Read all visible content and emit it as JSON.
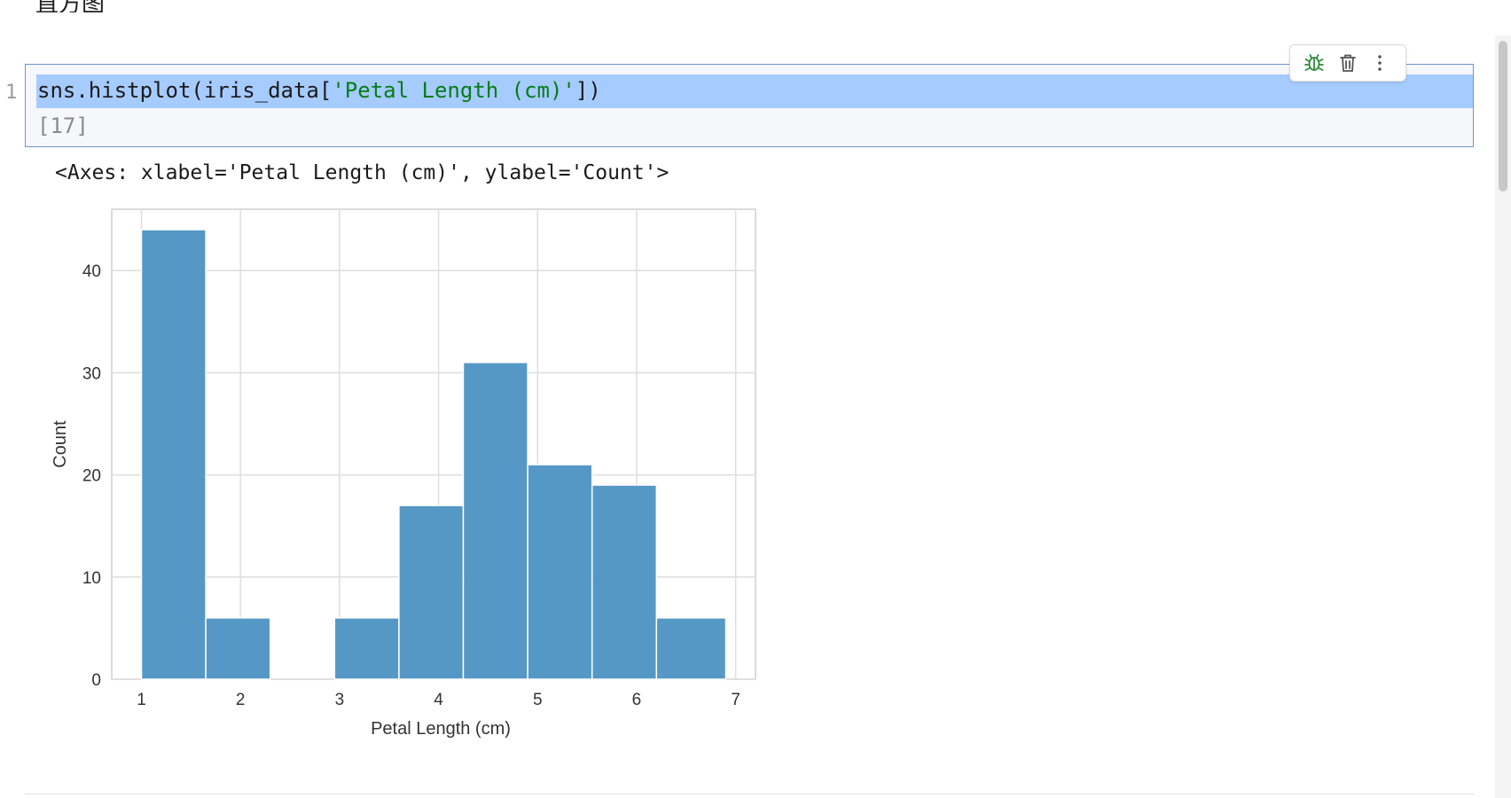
{
  "heading": {
    "text": "直方图"
  },
  "cell": {
    "line_number": "1",
    "code_pre": "sns.histplot(iris_data[",
    "code_str": "'Petal Length (cm)'",
    "code_post": "])",
    "execution_count": "[17]"
  },
  "toolbar": {
    "debug_icon": "bug-icon",
    "delete_icon": "trash-icon",
    "more_icon": "more-vertical-icon",
    "debug_color": "#2e8b3a",
    "icon_color": "#555555"
  },
  "output": {
    "repr": "<Axes: xlabel='Petal Length (cm)', ylabel='Count'>"
  },
  "chart_data": {
    "type": "bar",
    "title": "",
    "xlabel": "Petal Length (cm)",
    "ylabel": "Count",
    "bar_color": "#4c92c3",
    "grid": true,
    "xlim": [
      0.7,
      7.2
    ],
    "ylim": [
      0,
      46
    ],
    "x_ticks": [
      1,
      2,
      3,
      4,
      5,
      6,
      7
    ],
    "y_ticks": [
      0,
      10,
      20,
      30,
      40
    ],
    "bins": [
      {
        "x0": 1.0,
        "x1": 1.65,
        "count": 44
      },
      {
        "x0": 1.65,
        "x1": 2.3,
        "count": 6
      },
      {
        "x0": 2.3,
        "x1": 2.95,
        "count": 0
      },
      {
        "x0": 2.95,
        "x1": 3.6,
        "count": 6
      },
      {
        "x0": 3.6,
        "x1": 4.25,
        "count": 17
      },
      {
        "x0": 4.25,
        "x1": 4.9,
        "count": 31
      },
      {
        "x0": 4.9,
        "x1": 5.55,
        "count": 21
      },
      {
        "x0": 5.55,
        "x1": 6.2,
        "count": 19
      },
      {
        "x0": 6.2,
        "x1": 6.9,
        "count": 6
      }
    ]
  }
}
